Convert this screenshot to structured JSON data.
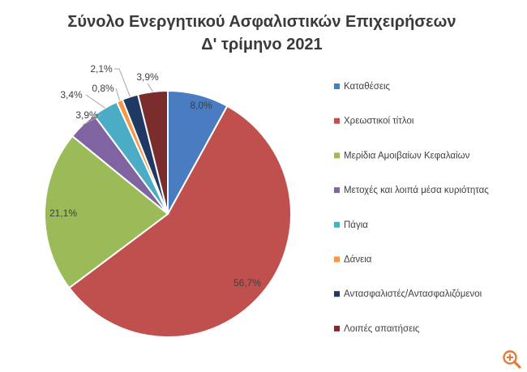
{
  "chart_data": {
    "type": "pie",
    "title_lines": [
      "Σύνολο Ενεργητικού Ασφαλιστικών Επιχειρήσεων",
      "Δ' τρίμηνο 2021"
    ],
    "categories": [
      "Καταθέσεις",
      "Χρεωστικοί τίτλοι",
      "Μερίδια Αμοιβαίων Κεφαλαίων",
      "Μετοχές και λοιπά μέσα κυριότητας",
      "Πάγια",
      "Δάνεια",
      "Αντασφαλιστές/Αντασφαλιζόμενοι",
      "Λοιπές απαιτήσεις"
    ],
    "values": [
      8.0,
      56.7,
      21.1,
      3.9,
      3.4,
      0.8,
      2.1,
      3.9
    ],
    "labels": [
      "8,0%",
      "56,7%",
      "21,1%",
      "3,9%",
      "3,4%",
      "0,8%",
      "2,1%",
      "3,9%"
    ],
    "colors": [
      "#4a7cc2",
      "#c0504d",
      "#9bbb59",
      "#8064a2",
      "#4bacc6",
      "#f79646",
      "#1f3864",
      "#7b2c2c"
    ],
    "legend_position": "right"
  },
  "ui": {
    "zoom_icon": "zoom-in-icon",
    "zoom_color": "#e07b39"
  }
}
